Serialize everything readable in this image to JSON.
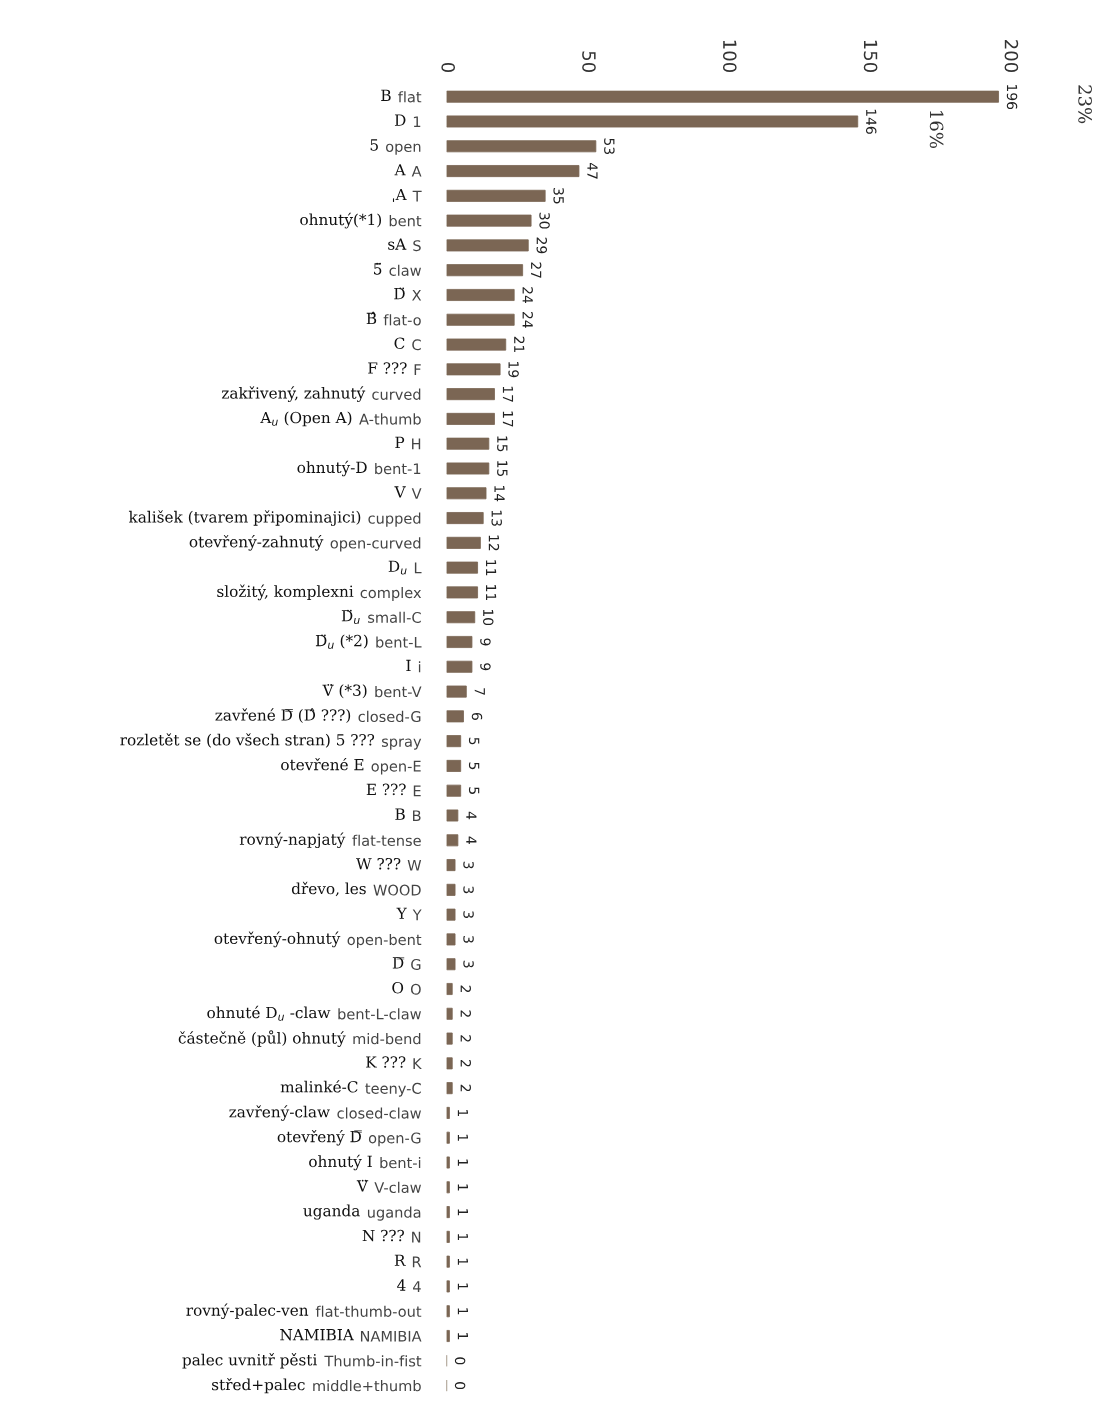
{
  "chart_data": {
    "type": "bar",
    "orientation": "horizontal",
    "color": "#7b6654",
    "categories": [
      "flat",
      "1",
      "open",
      "A",
      "T",
      "bent",
      "S",
      "claw",
      "X",
      "flat-o",
      "C",
      "F",
      "curved",
      "A-thumb",
      "H",
      "bent-1",
      "V",
      "cupped",
      "open-curved",
      "L",
      "complex",
      "small-C",
      "bent-L",
      "i",
      "bent-V",
      "closed-G",
      "spray",
      "open-E",
      "E",
      "B",
      "flat-tense",
      "W",
      "WOOD",
      "Y",
      "open-bent",
      "G",
      "O",
      "bent-L-claw",
      "mid-bend",
      "K",
      "teeny-C",
      "closed-claw",
      "open-G",
      "bent-i",
      "V-claw",
      "uganda",
      "N",
      "R",
      "4",
      "flat-thumb-out",
      "NAMIBIA",
      "Thumb-in-fist",
      "middle+thumb"
    ],
    "values": [
      196,
      146,
      53,
      47,
      35,
      30,
      29,
      27,
      24,
      24,
      21,
      19,
      17,
      17,
      15,
      15,
      14,
      13,
      12,
      11,
      11,
      10,
      9,
      9,
      7,
      6,
      5,
      5,
      5,
      4,
      4,
      3,
      3,
      3,
      3,
      3,
      2,
      2,
      2,
      2,
      2,
      1,
      1,
      1,
      1,
      1,
      1,
      1,
      1,
      1,
      1,
      0,
      0
    ],
    "xlim": [
      0,
      200
    ],
    "xticks": [
      0,
      50,
      100,
      150,
      200
    ],
    "data_labels": true,
    "annotations": [
      "B",
      "D",
      "5",
      "A",
      "ˌA",
      "ohnutý(*1)",
      "sA",
      "5̈",
      "D̈",
      "B̂",
      "C",
      "F ???",
      "zakřivený, zahnutý",
      "A$_{u}$ (Open A)",
      "P",
      "ohnutý-D",
      "V",
      "kališek (tvarem připominajici)",
      "otevřený-zahnutý",
      "D$_{u}$",
      "složitý, komplexni",
      "D̈$_{u}$",
      "D̈$_{u}$ (*2)",
      "I",
      "V̈ (*3)",
      "zavřené D̿ (D̂ ???)",
      "rozletět se (do všech stran) 5 ???",
      "otevřené E",
      "E ???",
      "B",
      "rovný-napjatý",
      "W ???",
      "dřevo, les",
      "Y",
      "otevřený-ohnutý",
      "D̿",
      "O",
      "ohnuté D$_{u}$ -claw",
      "částečně (půl) ohnutý",
      "K ???",
      "malinké-C",
      "zavřený-claw",
      "otevřený D̿",
      "ohnutý I",
      "V̈",
      "uganda",
      "N ???",
      "R",
      "4",
      "rovný-palec-ven",
      "NAMIBIA",
      "palec uvnitř pěsti",
      "střed+palec",
      "23%",
      "16%"
    ]
  }
}
